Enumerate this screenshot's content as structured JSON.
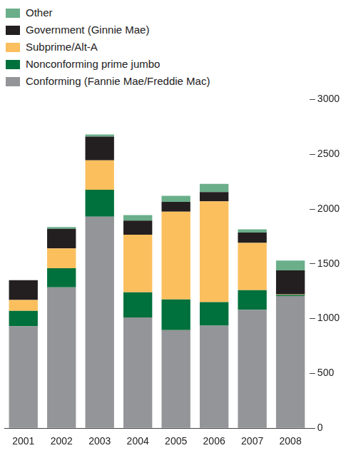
{
  "chart_data": {
    "type": "bar",
    "stacked": true,
    "legend": "top-left",
    "grid": false,
    "categories": [
      "2001",
      "2002",
      "2003",
      "2004",
      "2005",
      "2006",
      "2007",
      "2008"
    ],
    "ylim": [
      0,
      3000
    ],
    "yticks": [
      0,
      500,
      1000,
      1500,
      2000,
      2500,
      3000
    ],
    "series": [
      {
        "name": "Conforming (Fannie Mae/Freddie Mac)",
        "color": "#939598",
        "values": [
          930,
          1285,
          1930,
          1010,
          895,
          935,
          1080,
          1205
        ]
      },
      {
        "name": "Nonconforming prime jumbo",
        "color": "#00703c",
        "values": [
          140,
          175,
          245,
          230,
          280,
          215,
          180,
          10
        ]
      },
      {
        "name": "Subprime/Alt-A",
        "color": "#fbbf5e",
        "values": [
          100,
          180,
          270,
          525,
          800,
          920,
          430,
          5
        ]
      },
      {
        "name": "Government (Ginnie Mae)",
        "color": "#231f20",
        "values": [
          180,
          180,
          215,
          130,
          90,
          85,
          95,
          220
        ]
      },
      {
        "name": "Other",
        "color": "#6aaf8a",
        "values": [
          0,
          15,
          20,
          50,
          55,
          75,
          30,
          90
        ]
      }
    ]
  }
}
